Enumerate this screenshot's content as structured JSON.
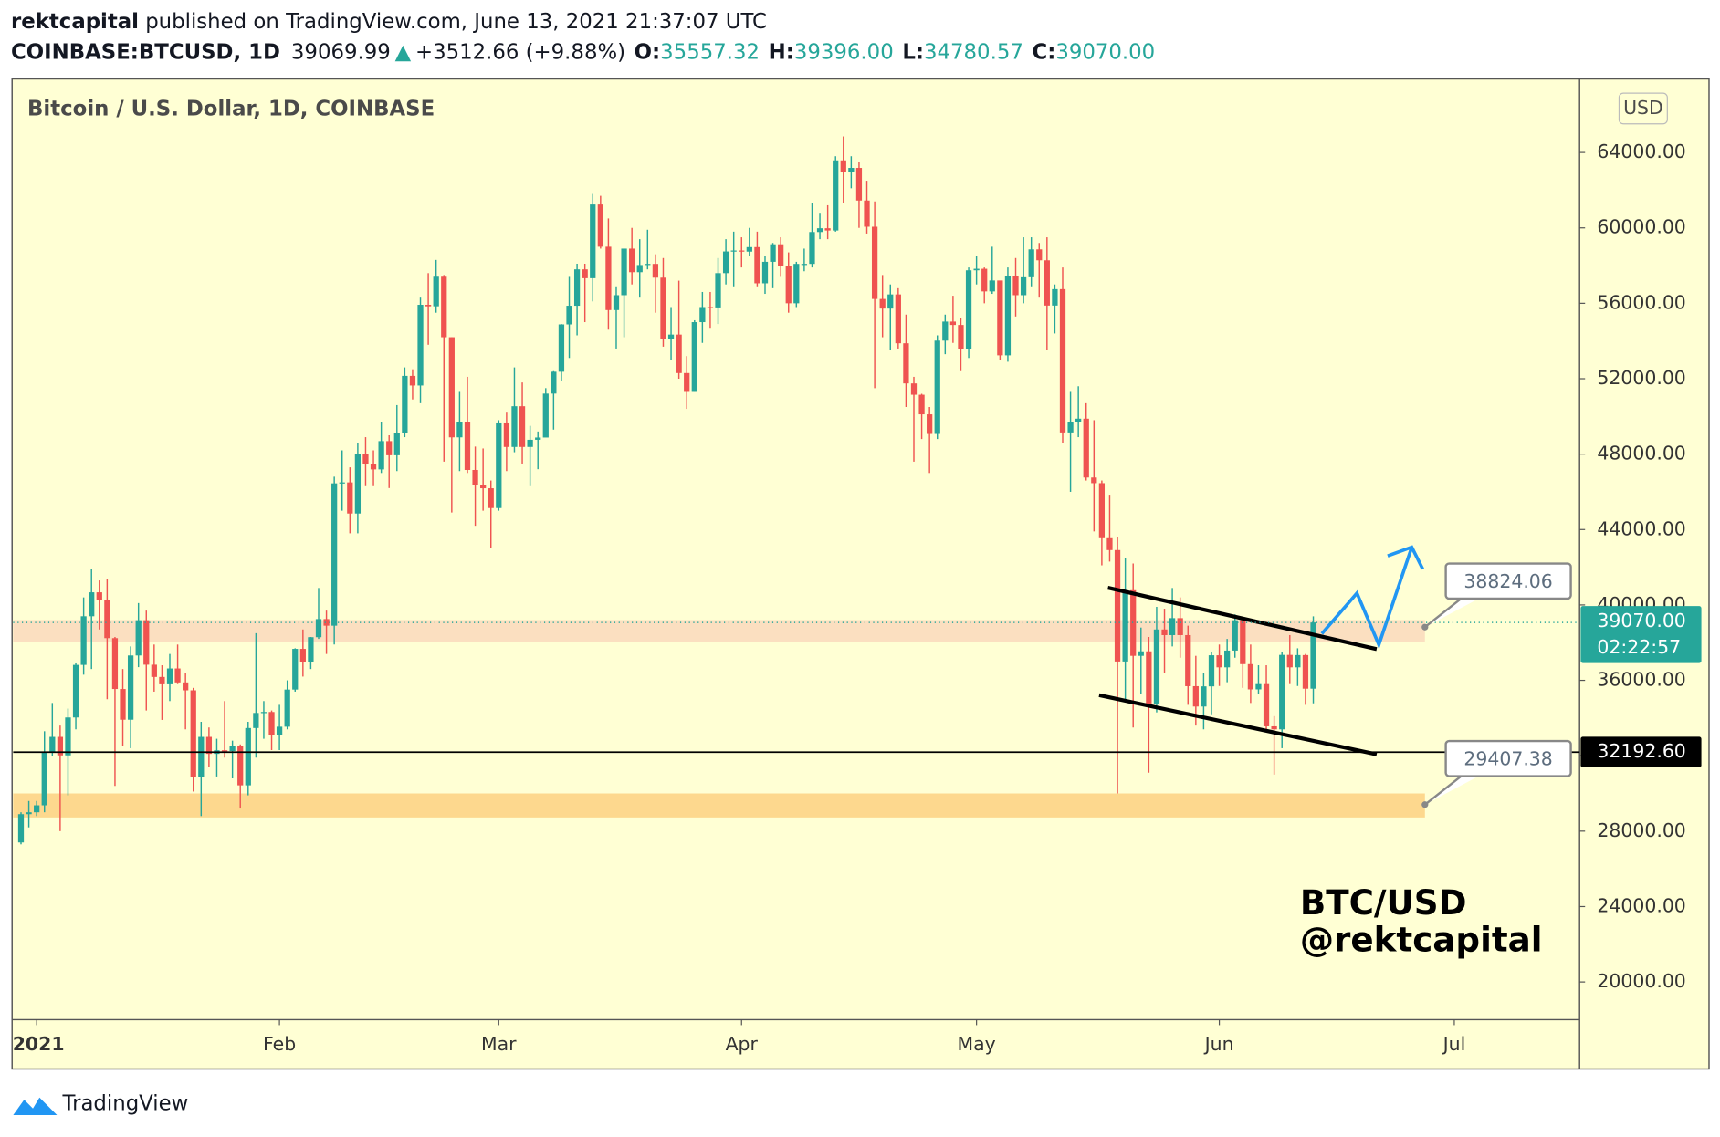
{
  "header": {
    "author": "rektcapital",
    "published": "published on TradingView.com, June 13, 2021 21:37:07 UTC",
    "symbol": "COINBASE:BTCUSD, 1D",
    "price": "39069.99",
    "arrow": "▲",
    "change": "+3512.66 (+9.88%)",
    "ohlc": [
      {
        "label": "O:",
        "value": "35557.32"
      },
      {
        "label": "H:",
        "value": "39396.00"
      },
      {
        "label": "L:",
        "value": "34780.57"
      },
      {
        "label": "C:",
        "value": "39070.00"
      }
    ]
  },
  "chart_data": {
    "type": "candlestick",
    "title": "Bitcoin / U.S. Dollar, 1D, COINBASE",
    "currency": "USD",
    "watermark": [
      "BTC/USD",
      "@rektcapital"
    ],
    "footer": "TradingView",
    "up_color": "#26a69a",
    "down_color": "#ef5350",
    "xlim": [
      "2020-12-29",
      "2021-07-17"
    ],
    "xticks": [
      {
        "value": "2021-01-01",
        "label": "2021"
      },
      {
        "value": "2021-02-01",
        "label": "Feb"
      },
      {
        "value": "2021-03-01",
        "label": "Mar"
      },
      {
        "value": "2021-04-01",
        "label": "Apr"
      },
      {
        "value": "2021-05-01",
        "label": "May"
      },
      {
        "value": "2021-06-01",
        "label": "Jun"
      },
      {
        "value": "2021-07-01",
        "label": "Jul"
      }
    ],
    "ylim": [
      18000,
      67900
    ],
    "yticks": [
      {
        "value": 20000,
        "label": "20000.00"
      },
      {
        "value": 24000,
        "label": "24000.00"
      },
      {
        "value": 28000,
        "label": "28000.00"
      },
      {
        "value": 32000,
        "label": "32000.00"
      },
      {
        "value": 36000,
        "label": "36000.00"
      },
      {
        "value": 40000,
        "label": "40000.00"
      },
      {
        "value": 44000,
        "label": "44000.00"
      },
      {
        "value": 48000,
        "label": "48000.00"
      },
      {
        "value": 52000,
        "label": "52000.00"
      },
      {
        "value": 56000,
        "label": "56000.00"
      },
      {
        "value": 60000,
        "label": "60000.00"
      },
      {
        "value": 64000,
        "label": "64000.00"
      }
    ],
    "last_price": {
      "value": 39070,
      "label": "39070.00",
      "countdown": "02:22:57",
      "color": "#26a69a"
    },
    "level": {
      "value": 32192.6,
      "label": "32192.60"
    },
    "callouts": [
      38824.06,
      29407.38
    ],
    "zones": [
      {
        "from": 38040,
        "to": 39200,
        "color": "#fbdfc0"
      },
      {
        "from": 28725,
        "to": 30000,
        "color": "#fdd88e"
      }
    ],
    "x": [
      "2020-12-30",
      "2020-12-31",
      "2021-01-01",
      "2021-01-02",
      "2021-01-03",
      "2021-01-04",
      "2021-01-05",
      "2021-01-06",
      "2021-01-07",
      "2021-01-08",
      "2021-01-09",
      "2021-01-10",
      "2021-01-11",
      "2021-01-12",
      "2021-01-13",
      "2021-01-14",
      "2021-01-15",
      "2021-01-16",
      "2021-01-17",
      "2021-01-18",
      "2021-01-19",
      "2021-01-20",
      "2021-01-21",
      "2021-01-22",
      "2021-01-23",
      "2021-01-24",
      "2021-01-25",
      "2021-01-26",
      "2021-01-27",
      "2021-01-28",
      "2021-01-29",
      "2021-01-30",
      "2021-01-31",
      "2021-02-01",
      "2021-02-02",
      "2021-02-03",
      "2021-02-04",
      "2021-02-05",
      "2021-02-06",
      "2021-02-07",
      "2021-02-08",
      "2021-02-09",
      "2021-02-10",
      "2021-02-11",
      "2021-02-12",
      "2021-02-13",
      "2021-02-14",
      "2021-02-15",
      "2021-02-16",
      "2021-02-17",
      "2021-02-18",
      "2021-02-19",
      "2021-02-20",
      "2021-02-21",
      "2021-02-22",
      "2021-02-23",
      "2021-02-24",
      "2021-02-25",
      "2021-02-26",
      "2021-02-27",
      "2021-02-28",
      "2021-03-01",
      "2021-03-02",
      "2021-03-03",
      "2021-03-04",
      "2021-03-05",
      "2021-03-06",
      "2021-03-07",
      "2021-03-08",
      "2021-03-09",
      "2021-03-10",
      "2021-03-11",
      "2021-03-12",
      "2021-03-13",
      "2021-03-14",
      "2021-03-15",
      "2021-03-16",
      "2021-03-17",
      "2021-03-18",
      "2021-03-19",
      "2021-03-20",
      "2021-03-21",
      "2021-03-22",
      "2021-03-23",
      "2021-03-24",
      "2021-03-25",
      "2021-03-26",
      "2021-03-27",
      "2021-03-28",
      "2021-03-29",
      "2021-03-30",
      "2021-03-31",
      "2021-04-01",
      "2021-04-02",
      "2021-04-03",
      "2021-04-04",
      "2021-04-05",
      "2021-04-06",
      "2021-04-07",
      "2021-04-08",
      "2021-04-09",
      "2021-04-10",
      "2021-04-11",
      "2021-04-12",
      "2021-04-13",
      "2021-04-14",
      "2021-04-15",
      "2021-04-16",
      "2021-04-17",
      "2021-04-18",
      "2021-04-19",
      "2021-04-20",
      "2021-04-21",
      "2021-04-22",
      "2021-04-23",
      "2021-04-24",
      "2021-04-25",
      "2021-04-26",
      "2021-04-27",
      "2021-04-28",
      "2021-04-29",
      "2021-04-30",
      "2021-05-01",
      "2021-05-02",
      "2021-05-03",
      "2021-05-04",
      "2021-05-05",
      "2021-05-06",
      "2021-05-07",
      "2021-05-08",
      "2021-05-09",
      "2021-05-10",
      "2021-05-11",
      "2021-05-12",
      "2021-05-13",
      "2021-05-14",
      "2021-05-15",
      "2021-05-16",
      "2021-05-17",
      "2021-05-18",
      "2021-05-19",
      "2021-05-20",
      "2021-05-21",
      "2021-05-22",
      "2021-05-23",
      "2021-05-24",
      "2021-05-25",
      "2021-05-26",
      "2021-05-27",
      "2021-05-28",
      "2021-05-29",
      "2021-05-30",
      "2021-05-31",
      "2021-06-01",
      "2021-06-02",
      "2021-06-03",
      "2021-06-04",
      "2021-06-05",
      "2021-06-06",
      "2021-06-07",
      "2021-06-08",
      "2021-06-09",
      "2021-06-10",
      "2021-06-11",
      "2021-06-12",
      "2021-06-13"
    ],
    "open": [
      27400,
      28900,
      29000,
      29370,
      32190,
      33000,
      32020,
      34030,
      36820,
      39400,
      40670,
      40240,
      38240,
      35540,
      33910,
      37320,
      39190,
      36830,
      36180,
      35790,
      36630,
      35890,
      35470,
      30850,
      33000,
      32100,
      32290,
      32250,
      32510,
      30430,
      33470,
      34270,
      34320,
      33110,
      33540,
      35510,
      37670,
      36950,
      38290,
      39250,
      38900,
      46450,
      46500,
      44850,
      48010,
      47470,
      47190,
      48690,
      47940,
      49130,
      52150,
      51640,
      55920,
      55840,
      57410,
      54200,
      48890,
      49680,
      47160,
      46340,
      46190,
      45140,
      49630,
      48380,
      50540,
      48380,
      48760,
      48880,
      51210,
      52370,
      54880,
      55870,
      57800,
      57330,
      61240,
      59000,
      55640,
      56430,
      58900,
      57650,
      58030,
      58090,
      57360,
      54100,
      54340,
      52300,
      51300,
      55000,
      55800,
      55780,
      57600,
      58750,
      58800,
      58740,
      58980,
      57060,
      58200,
      59130,
      57990,
      56000,
      58090,
      58090,
      59780,
      59980,
      59860,
      63580,
      62960,
      63180,
      61450,
      60060,
      56230,
      55720,
      56470,
      53880,
      51750,
      51150,
      50110,
      49070,
      54020,
      55030,
      54850,
      53560,
      57750,
      57830,
      56630,
      57210,
      53240,
      57470,
      56430,
      57380,
      58860,
      58280,
      55880,
      56750,
      49150,
      49720,
      49880,
      46760,
      46460,
      43540,
      42910,
      37000,
      40780,
      37300,
      37540,
      34770,
      38700,
      38400,
      39300,
      38400,
      35690,
      34610,
      35680,
      37330,
      36690,
      37580,
      39190,
      36860,
      35520,
      35800,
      33560,
      33400,
      37350,
      36690,
      37340,
      35557.32
    ],
    "high": [
      29000,
      29600,
      29600,
      33300,
      34800,
      33600,
      34500,
      36900,
      40400,
      41900,
      41300,
      41400,
      38300,
      36600,
      37800,
      40100,
      39700,
      37900,
      36800,
      37400,
      37900,
      36400,
      35600,
      33800,
      33500,
      32900,
      34900,
      32800,
      32600,
      33800,
      38500,
      34900,
      34400,
      34700,
      36000,
      37700,
      38700,
      38300,
      40900,
      39700,
      46800,
      48200,
      47300,
      48600,
      48900,
      48200,
      49700,
      49000,
      50600,
      52600,
      52500,
      56300,
      57600,
      58300,
      57500,
      54200,
      51300,
      52100,
      48400,
      48300,
      46600,
      49800,
      50200,
      52600,
      51800,
      49500,
      49200,
      51500,
      52400,
      54900,
      57400,
      58100,
      58100,
      61800,
      61700,
      60500,
      56900,
      58900,
      60000,
      59400,
      59900,
      58600,
      58400,
      55800,
      57200,
      53200,
      55100,
      56600,
      56600,
      58400,
      59400,
      59800,
      59500,
      60000,
      59800,
      58500,
      59200,
      59500,
      58700,
      58200,
      58900,
      61300,
      60800,
      61200,
      63800,
      64850,
      63800,
      63500,
      62500,
      61400,
      57500,
      57000,
      56800,
      55400,
      52100,
      51200,
      50500,
      54300,
      55400,
      56400,
      55200,
      57900,
      58500,
      57900,
      59000,
      57200,
      57900,
      58400,
      59500,
      59500,
      59200,
      59500,
      57000,
      57900,
      51300,
      51600,
      50700,
      49800,
      46600,
      45800,
      43600,
      42500,
      42200,
      38800,
      38300,
      39900,
      39800,
      40900,
      40400,
      38900,
      37300,
      36400,
      37500,
      37900,
      38200,
      39500,
      39300,
      37900,
      36800,
      36800,
      34100,
      37500,
      38400,
      37700,
      37400,
      39396
    ],
    "low": [
      27300,
      28200,
      28800,
      29000,
      32000,
      28000,
      29900,
      33400,
      36300,
      36600,
      38700,
      35000,
      30400,
      32500,
      32400,
      36700,
      34400,
      35400,
      33900,
      34900,
      35800,
      33400,
      30100,
      28800,
      31400,
      30900,
      31900,
      30800,
      29200,
      29900,
      31900,
      32900,
      32300,
      32300,
      33400,
      35400,
      36200,
      36600,
      38200,
      37400,
      37900,
      45000,
      43800,
      43800,
      46300,
      46300,
      47000,
      46200,
      47100,
      48900,
      50900,
      50700,
      53800,
      55500,
      47600,
      44900,
      47100,
      47000,
      44200,
      45000,
      43000,
      45000,
      47100,
      48100,
      47500,
      46300,
      47200,
      48900,
      49300,
      51900,
      53100,
      54300,
      55000,
      56100,
      58900,
      54600,
      53600,
      54200,
      57000,
      56300,
      57800,
      55500,
      53700,
      53000,
      52000,
      50400,
      51300,
      53900,
      54700,
      54900,
      57000,
      56900,
      57900,
      58500,
      56900,
      56500,
      56800,
      57400,
      55500,
      55800,
      57700,
      57900,
      59400,
      59400,
      59800,
      61300,
      62100,
      60000,
      59700,
      51500,
      54200,
      53500,
      53600,
      50500,
      47600,
      48800,
      47000,
      48800,
      53300,
      53900,
      52400,
      53100,
      57000,
      56000,
      56500,
      53000,
      52900,
      55300,
      56000,
      56900,
      56300,
      53500,
      54400,
      48600,
      46000,
      48900,
      46600,
      43900,
      42100,
      42300,
      30000,
      35000,
      33500,
      35300,
      31100,
      34300,
      36400,
      37800,
      37200,
      34700,
      33600,
      33400,
      34200,
      35700,
      35900,
      37200,
      35600,
      34800,
      35300,
      33400,
      31000,
      32400,
      35800,
      35700,
      34700,
      34780.57
    ],
    "close": [
      28900,
      29000,
      29370,
      32190,
      33000,
      32020,
      34030,
      36820,
      39400,
      40670,
      40240,
      38240,
      35540,
      33910,
      37320,
      39190,
      36830,
      36180,
      35790,
      36630,
      35890,
      35470,
      30850,
      33000,
      32100,
      32290,
      32250,
      32510,
      30430,
      33470,
      34270,
      34320,
      33110,
      33540,
      35510,
      37670,
      36950,
      38290,
      39250,
      38900,
      46450,
      46500,
      44850,
      48010,
      47470,
      47190,
      48690,
      47940,
      49130,
      52150,
      51640,
      55920,
      55840,
      57410,
      54200,
      48890,
      49680,
      47160,
      46340,
      46190,
      45140,
      49630,
      48380,
      50540,
      48380,
      48760,
      48880,
      51210,
      52370,
      54880,
      55870,
      57800,
      57330,
      61240,
      59000,
      55640,
      56430,
      58900,
      57650,
      58030,
      58090,
      57360,
      54100,
      54340,
      52300,
      51300,
      55000,
      55800,
      55780,
      57600,
      58750,
      58800,
      58740,
      58980,
      57060,
      58200,
      59130,
      57990,
      56000,
      58090,
      58090,
      59780,
      59980,
      59860,
      63580,
      62960,
      63180,
      61450,
      60060,
      56230,
      55720,
      56470,
      53880,
      51750,
      51150,
      50110,
      49070,
      54020,
      55030,
      54850,
      53560,
      57750,
      57830,
      56630,
      57210,
      53240,
      57470,
      56430,
      57380,
      58860,
      58280,
      55880,
      56750,
      49150,
      49720,
      49880,
      46760,
      46460,
      43540,
      42910,
      37000,
      40780,
      37300,
      37540,
      34770,
      38700,
      38400,
      39300,
      38400,
      35690,
      34610,
      35680,
      37330,
      36690,
      37580,
      39190,
      36860,
      35520,
      35800,
      33560,
      33400,
      37350,
      36690,
      37340,
      35557.32,
      39070
    ]
  }
}
